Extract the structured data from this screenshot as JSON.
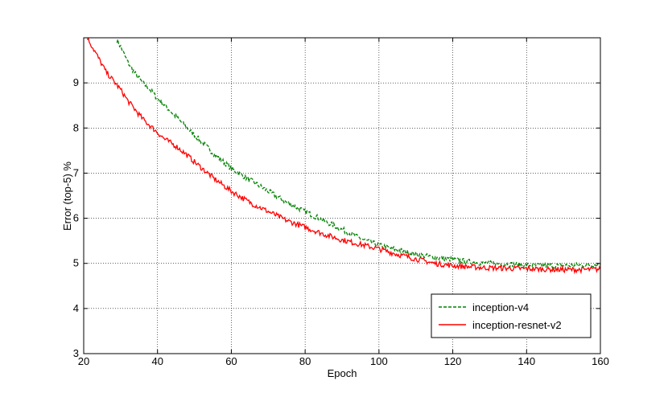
{
  "chart_data": {
    "type": "line",
    "title": "",
    "xlabel": "Epoch",
    "ylabel": "Error (top-5) %",
    "xlim": [
      20,
      160
    ],
    "ylim": [
      3,
      10
    ],
    "xticks": [
      20,
      40,
      60,
      80,
      100,
      120,
      140,
      160
    ],
    "yticks": [
      3,
      4,
      5,
      6,
      7,
      8,
      9
    ],
    "grid": true,
    "grid_style": "dotted",
    "legend_position": "lower-right",
    "series": [
      {
        "name": "inception-v4",
        "color": "#008000",
        "line_style": "dashed",
        "x": [
          29,
          30,
          32,
          34,
          36,
          38,
          40,
          42,
          45,
          48,
          50,
          55,
          60,
          65,
          70,
          75,
          80,
          85,
          90,
          95,
          100,
          105,
          110,
          115,
          120,
          125,
          130,
          135,
          140,
          145,
          150,
          155,
          160
        ],
        "y": [
          9.95,
          9.8,
          9.45,
          9.2,
          9.0,
          8.85,
          8.65,
          8.5,
          8.25,
          8.0,
          7.85,
          7.45,
          7.1,
          6.85,
          6.6,
          6.35,
          6.15,
          5.95,
          5.75,
          5.55,
          5.4,
          5.3,
          5.2,
          5.13,
          5.08,
          5.03,
          5.0,
          4.98,
          4.96,
          4.95,
          4.95,
          4.96,
          4.98
        ]
      },
      {
        "name": "inception-resnet-v2",
        "color": "#ff0000",
        "line_style": "solid",
        "x": [
          21,
          22,
          23,
          24,
          25,
          26,
          28,
          30,
          32,
          34,
          36,
          38,
          40,
          42,
          45,
          48,
          50,
          55,
          60,
          65,
          70,
          75,
          80,
          85,
          90,
          95,
          100,
          105,
          110,
          115,
          120,
          125,
          130,
          135,
          140,
          145,
          150,
          155,
          160
        ],
        "y": [
          10.0,
          9.85,
          9.7,
          9.55,
          9.4,
          9.25,
          9.05,
          8.85,
          8.6,
          8.4,
          8.2,
          8.05,
          7.9,
          7.75,
          7.6,
          7.4,
          7.25,
          6.9,
          6.6,
          6.35,
          6.15,
          5.95,
          5.8,
          5.65,
          5.52,
          5.42,
          5.32,
          5.2,
          5.1,
          5.0,
          4.95,
          4.92,
          4.9,
          4.89,
          4.88,
          4.87,
          4.86,
          4.86,
          4.87
        ]
      }
    ]
  }
}
